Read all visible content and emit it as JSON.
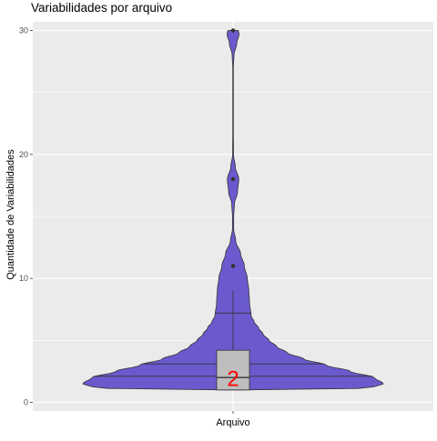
{
  "chart_data": {
    "type": "violin",
    "title": "Variabilidades por arquivo",
    "xlabel": "Arquivo",
    "ylabel": "Quantidade de Variabilidades",
    "categories": [
      ""
    ],
    "ylim": [
      -0.7,
      30.7
    ],
    "yticks": [
      0,
      10,
      20,
      30
    ],
    "grid": true,
    "background": "#EBEBEB",
    "violin": {
      "fill": "#6A5ACD",
      "outline": "#333333",
      "density_profile": [
        {
          "y": 1.0,
          "w": 0.05
        },
        {
          "y": 1.1,
          "w": 0.82
        },
        {
          "y": 1.2,
          "w": 0.93
        },
        {
          "y": 1.5,
          "w": 1.0
        },
        {
          "y": 2.0,
          "w": 0.94
        },
        {
          "y": 2.5,
          "w": 0.78
        },
        {
          "y": 3.0,
          "w": 0.62
        },
        {
          "y": 3.5,
          "w": 0.47
        },
        {
          "y": 4.0,
          "w": 0.36
        },
        {
          "y": 4.5,
          "w": 0.29
        },
        {
          "y": 5.0,
          "w": 0.24
        },
        {
          "y": 5.5,
          "w": 0.2
        },
        {
          "y": 6.0,
          "w": 0.17
        },
        {
          "y": 6.5,
          "w": 0.14
        },
        {
          "y": 7.0,
          "w": 0.12
        },
        {
          "y": 8.0,
          "w": 0.11
        },
        {
          "y": 9.0,
          "w": 0.105
        },
        {
          "y": 10.0,
          "w": 0.095
        },
        {
          "y": 11.0,
          "w": 0.075
        },
        {
          "y": 12.0,
          "w": 0.05
        },
        {
          "y": 13.0,
          "w": 0.018
        },
        {
          "y": 14.0,
          "w": 0.004
        },
        {
          "y": 15.0,
          "w": 0.004
        },
        {
          "y": 16.0,
          "w": 0.009
        },
        {
          "y": 17.0,
          "w": 0.03
        },
        {
          "y": 18.0,
          "w": 0.038
        },
        {
          "y": 19.0,
          "w": 0.015
        },
        {
          "y": 20.0,
          "w": 0.003
        },
        {
          "y": 22.0,
          "w": 0.002
        },
        {
          "y": 25.0,
          "w": 0.002
        },
        {
          "y": 27.0,
          "w": 0.002
        },
        {
          "y": 28.0,
          "w": 0.006
        },
        {
          "y": 29.0,
          "w": 0.025
        },
        {
          "y": 29.7,
          "w": 0.04
        },
        {
          "y": 30.0,
          "w": 0.035
        }
      ],
      "quantile_lines": [
        2.1,
        3.1,
        7.2
      ]
    },
    "boxplot": {
      "q1": 1.0,
      "median": 2.0,
      "q3": 4.2,
      "whisker_low": 1.0,
      "whisker_high": 9.0,
      "fill": "#BEBEBE",
      "outliers": [
        11,
        18,
        30
      ]
    },
    "annotation": {
      "text": "2",
      "y": 1.9,
      "color": "#FF0000"
    }
  }
}
